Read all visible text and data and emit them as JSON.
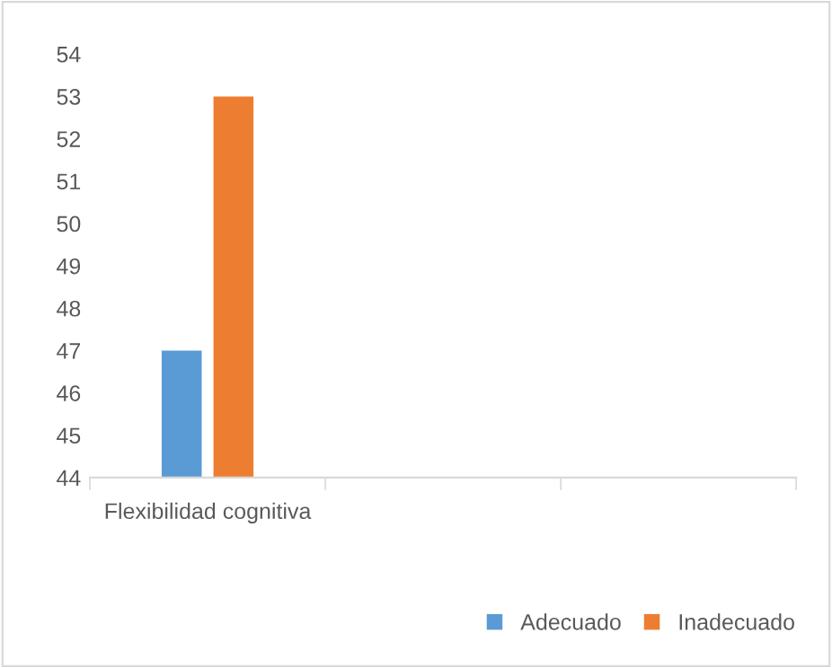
{
  "chart_data": {
    "type": "bar",
    "categories": [
      "Flexibilidad cognitiva",
      null,
      null
    ],
    "series": [
      {
        "name": "Adecuado",
        "color": "#5b9bd5",
        "values": [
          47,
          null,
          null
        ]
      },
      {
        "name": "Inadecuado",
        "color": "#ed7d31",
        "values": [
          53,
          null,
          null
        ]
      }
    ],
    "ylim": [
      44,
      54
    ],
    "yticks": [
      44,
      45,
      46,
      47,
      48,
      49,
      50,
      51,
      52,
      53,
      54
    ],
    "grid": false,
    "legend": "bottom right"
  }
}
